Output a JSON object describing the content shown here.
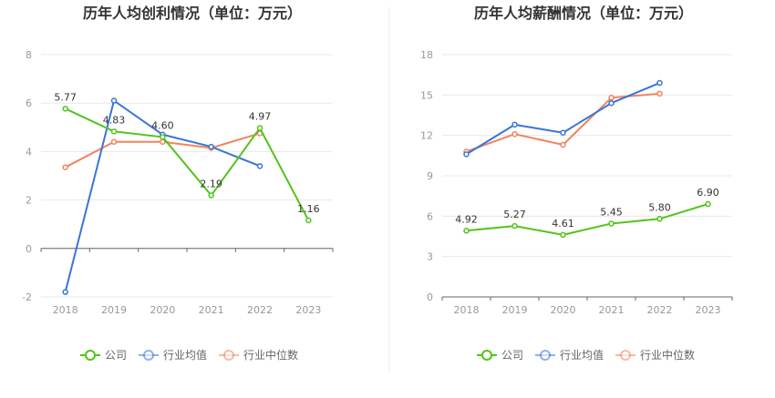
{
  "chart_data": [
    {
      "type": "line",
      "title": "历年人均创利情况（单位：万元）",
      "categories": [
        "2018",
        "2019",
        "2020",
        "2021",
        "2022",
        "2023"
      ],
      "ylim": [
        -2,
        8
      ],
      "yticks": [
        "-2",
        "0",
        "2",
        "4",
        "6",
        "8"
      ],
      "grid": true,
      "legend_position": "bottom",
      "series": [
        {
          "name": "公司",
          "color": "#52c41a",
          "values": [
            5.77,
            4.83,
            4.6,
            2.19,
            4.97,
            1.16
          ],
          "labels": [
            "5.77",
            "4.83",
            "4.60",
            "2.19",
            "4.97",
            "1.16"
          ]
        },
        {
          "name": "行业均值",
          "color": "#3a75d6",
          "values": [
            -1.8,
            6.1,
            4.7,
            4.2,
            3.4,
            null
          ]
        },
        {
          "name": "行业中位数",
          "color": "#f0845f",
          "values": [
            3.35,
            4.4,
            4.4,
            4.15,
            4.75,
            null
          ]
        }
      ]
    },
    {
      "type": "line",
      "title": "历年人均薪酬情况（单位：万元）",
      "categories": [
        "2018",
        "2019",
        "2020",
        "2021",
        "2022",
        "2023"
      ],
      "ylim": [
        0,
        18
      ],
      "yticks": [
        "0",
        "3",
        "6",
        "9",
        "12",
        "15",
        "18"
      ],
      "grid": true,
      "legend_position": "bottom",
      "series": [
        {
          "name": "公司",
          "color": "#52c41a",
          "values": [
            4.92,
            5.27,
            4.61,
            5.45,
            5.8,
            6.9
          ],
          "labels": [
            "4.92",
            "5.27",
            "4.61",
            "5.45",
            "5.80",
            "6.90"
          ]
        },
        {
          "name": "行业均值",
          "color": "#3a75d6",
          "values": [
            10.6,
            12.8,
            12.2,
            14.4,
            15.9,
            null
          ]
        },
        {
          "name": "行业中位数",
          "color": "#f0845f",
          "values": [
            10.8,
            12.1,
            11.3,
            14.8,
            15.1,
            null
          ]
        }
      ]
    }
  ]
}
